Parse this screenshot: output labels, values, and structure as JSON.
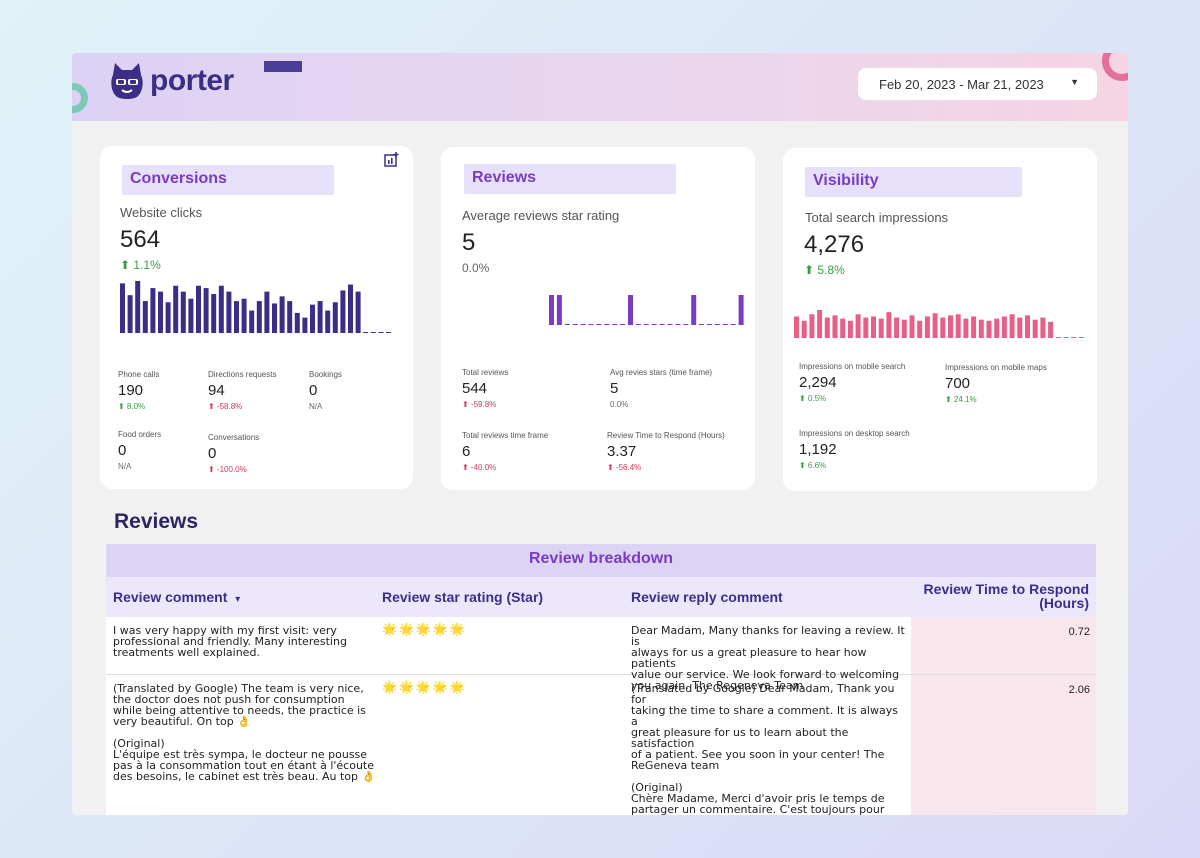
{
  "app": {
    "name": "porter"
  },
  "colors": {
    "accent": "#7a3cc0",
    "navy_bar": "#3b2e86",
    "pink_bar": "#e85e86",
    "green": "#3a9a48",
    "red": "#d63a56"
  },
  "date_range": {
    "value": "Feb 20, 2023 - Mar 21, 2023"
  },
  "conversions": {
    "title": "Conversions",
    "metric_label": "Website clicks",
    "metric_value": "564",
    "metric_change": "⬆ 1.1%",
    "sparkline": [
      42,
      32,
      44,
      27,
      38,
      35,
      26,
      40,
      35,
      29,
      40,
      38,
      33,
      40,
      35,
      27,
      29,
      19,
      27,
      35,
      25,
      31,
      27,
      17,
      13,
      24,
      27,
      19,
      26,
      36,
      41,
      35,
      0,
      0,
      0,
      0
    ],
    "stats": [
      {
        "label": "Phone calls",
        "value": "190",
        "change": "⬆ 8.0%",
        "trend": "up"
      },
      {
        "label": "Directions requests",
        "value": "94",
        "change": "⬆ -58.8%",
        "trend": "down"
      },
      {
        "label": "Bookings",
        "value": "0",
        "change": "N/A",
        "trend": "none"
      },
      {
        "label": "Food orders",
        "value": "0",
        "change": "N/A",
        "trend": "none"
      },
      {
        "label": "Conversations",
        "value": "0",
        "change": "⬆ -100.0%",
        "trend": "down"
      }
    ]
  },
  "reviews_card": {
    "title": "Reviews",
    "metric_label": "Average reviews star rating",
    "metric_value": "5",
    "metric_change": "0.0%",
    "sparkline": [
      1,
      1,
      0,
      0,
      0,
      0,
      0,
      0,
      0,
      0,
      1,
      0,
      0,
      0,
      0,
      0,
      0,
      0,
      1,
      0,
      0,
      0,
      0,
      0,
      1
    ],
    "stats": [
      {
        "label": "Total reviews",
        "value": "544",
        "change": "⬆ -59.8%",
        "trend": "down"
      },
      {
        "label": "Avg revies stars (time frame)",
        "value": "5",
        "change": "0.0%",
        "trend": "none"
      },
      {
        "label": "Total reviews time frame",
        "value": "6",
        "change": "⬆ -40.0%",
        "trend": "down"
      },
      {
        "label": "Review Time to Respond (Hours)",
        "value": "3.37",
        "change": "⬆ -56.4%",
        "trend": "down"
      }
    ]
  },
  "visibility": {
    "title": "Visibility",
    "metric_label": "Total search impressions",
    "metric_value": "4,276",
    "metric_change": "⬆ 5.8%",
    "sparkline": [
      20,
      16,
      22,
      26,
      19,
      21,
      18,
      16,
      22,
      19,
      20,
      18,
      24,
      19,
      17,
      21,
      16,
      20,
      23,
      19,
      21,
      22,
      18,
      20,
      17,
      16,
      18,
      20,
      22,
      19,
      21,
      17,
      19,
      15,
      0,
      0,
      0,
      0
    ],
    "stats": [
      {
        "label": "Impressions on mobile search",
        "value": "2,294",
        "change": "⬆ 0.5%",
        "trend": "up"
      },
      {
        "label": "Impressions on mobile maps",
        "value": "700",
        "change": "⬆ 24.1%",
        "trend": "up"
      },
      {
        "label": "Impressions on desktop search",
        "value": "1,192",
        "change": "⬆ 6.6%",
        "trend": "up"
      }
    ]
  },
  "reviews_section": {
    "title": "Reviews",
    "table_caption": "Review breakdown",
    "columns": {
      "comment": "Review comment",
      "sort_indicator": "▾",
      "rating": "Review star rating (Star)",
      "reply": "Review reply comment",
      "time": "Review Time to Respond (Hours)"
    },
    "rows": [
      {
        "comment": "I was very happy with my first visit: very\nprofessional and friendly. Many interesting\ntreatments well explained.",
        "stars": "🌟🌟🌟🌟🌟",
        "reply": "Dear Madam, Many thanks for leaving a review. It is\nalways for us a great pleasure to hear how patients\nvalue our service. We look forward to welcoming\nyou again. The Regeneva Team",
        "time": "0.72"
      },
      {
        "comment": "(Translated by Google) The team is very nice,\nthe doctor does not push for consumption\nwhile being attentive to needs, the practice is\nvery beautiful. On top 👌\n\n(Original)\nL'équipe est très sympa, le docteur ne pousse\npas à la consommation tout en étant à l'écoute\ndes besoins, le cabinet est très beau. Au top 👌",
        "stars": "🌟🌟🌟🌟🌟",
        "reply": "(Translated by Google) Dear Madam, Thank you for\ntaking the time to share a comment. It is always a\ngreat pleasure for us to learn about the satisfaction\nof a patient. See you soon in your center! The\nReGeneva team\n\n(Original)\nChère Madame, Merci d'avoir pris le temps de\npartager un commentaire. C'est toujours pour\nnous un grand plaisir que de prendre connaissance\nde la satisfaction d'une patiente. A très bientôt\ndans votre centre! L'équipe ReGeneva",
        "time": "2.06"
      }
    ]
  }
}
